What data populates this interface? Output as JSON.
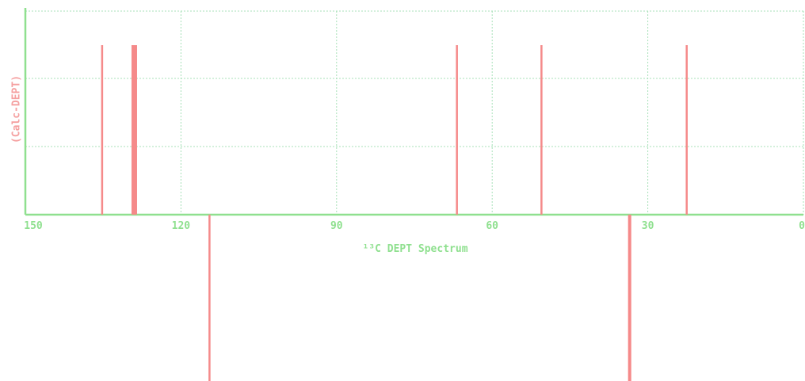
{
  "chart_data": {
    "type": "bar",
    "xlabel": "¹³C DEPT Spectrum",
    "ylabel": "(Calc-DEPT)",
    "x_ticks": [
      "150",
      "120",
      "90",
      "60",
      "30",
      "0"
    ],
    "x_tick_values": [
      150,
      120,
      90,
      60,
      30,
      0
    ],
    "xlim": [
      150,
      0
    ],
    "ylim": [
      -1.0,
      1.0
    ],
    "x_reversed": true,
    "grid": true,
    "peaks": [
      {
        "shift": 135.2,
        "intensity": 1.0
      },
      {
        "shift": 129.0,
        "intensity": 1.0,
        "broad": true
      },
      {
        "shift": 66.8,
        "intensity": 1.0
      },
      {
        "shift": 50.5,
        "intensity": 1.0
      },
      {
        "shift": 22.5,
        "intensity": 1.0
      },
      {
        "shift": 114.5,
        "intensity": -1.0
      },
      {
        "shift": 33.5,
        "intensity": -1.0,
        "broad": true
      }
    ],
    "colors": {
      "peak": "#f58a8a",
      "axis": "#8fe08f",
      "grid": "#a8e0b8",
      "label": "#8fe08f",
      "ylabel": "#f5a0a0"
    }
  }
}
